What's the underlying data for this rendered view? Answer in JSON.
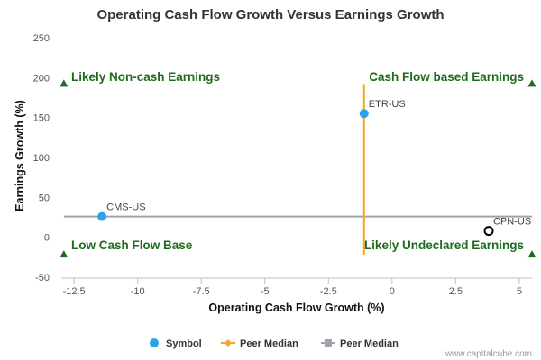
{
  "chart_data": {
    "type": "scatter",
    "title": "Operating Cash Flow Growth Versus Earnings Growth",
    "xlabel": "Operating Cash Flow Growth (%)",
    "ylabel": "Earnings Growth (%)",
    "xlim": [
      -13,
      5.5
    ],
    "ylim": [
      -50,
      250
    ],
    "x_ticks": [
      -12.5,
      -10,
      -7.5,
      -5,
      -2.5,
      0,
      2.5,
      5
    ],
    "x_tick_labels": [
      "-12.5",
      "-10",
      "-7.5",
      "-5",
      "-2.5",
      "0",
      "2.5",
      "5"
    ],
    "y_ticks": [
      -50,
      0,
      50,
      100,
      150,
      200,
      250
    ],
    "y_tick_labels": [
      "-50",
      "0",
      "50",
      "100",
      "150",
      "200",
      "250"
    ],
    "grid": false,
    "legend_position": "bottom-center",
    "points": [
      {
        "label": "CMS-US",
        "x": -11.4,
        "y": 26,
        "style": "filled",
        "color": "#2ba3ea"
      },
      {
        "label": "ETR-US",
        "x": -1.1,
        "y": 155,
        "style": "filled",
        "color": "#2ba3ea"
      },
      {
        "label": "CPN-US",
        "x": 3.8,
        "y": 8,
        "style": "hollow",
        "color": "#000000"
      }
    ],
    "peer_median_x": {
      "value": -1.1,
      "y_from": -22,
      "y_to": 192,
      "color": "#f5a623"
    },
    "peer_median_y": {
      "value": 26,
      "x_from": -12.9,
      "x_to": 5.5,
      "color": "#9ea4ae"
    },
    "quadrant_labels": [
      {
        "text": "Likely Non-cash Earnings",
        "corner": "top-left"
      },
      {
        "text": "Cash Flow based Earnings",
        "corner": "top-right"
      },
      {
        "text": "Low Cash Flow Base",
        "corner": "bottom-left"
      },
      {
        "text": "Likely Undeclared Earnings",
        "corner": "bottom-right"
      }
    ],
    "corner_markers": [
      {
        "x": -12.9,
        "y": 192
      },
      {
        "x": 5.5,
        "y": 192
      },
      {
        "x": -12.9,
        "y": -22
      },
      {
        "x": 5.5,
        "y": -22
      }
    ],
    "legend": [
      {
        "label": "Symbol",
        "marker": "circle",
        "color": "#2ba3ea"
      },
      {
        "label": "Peer Median",
        "marker": "diamond-line",
        "color": "#f5a623"
      },
      {
        "label": "Peer Median",
        "marker": "square-line",
        "color": "#9ea4ae"
      }
    ],
    "marker_color": "#1e6b1e"
  },
  "credit": "www.capitalcube.com"
}
